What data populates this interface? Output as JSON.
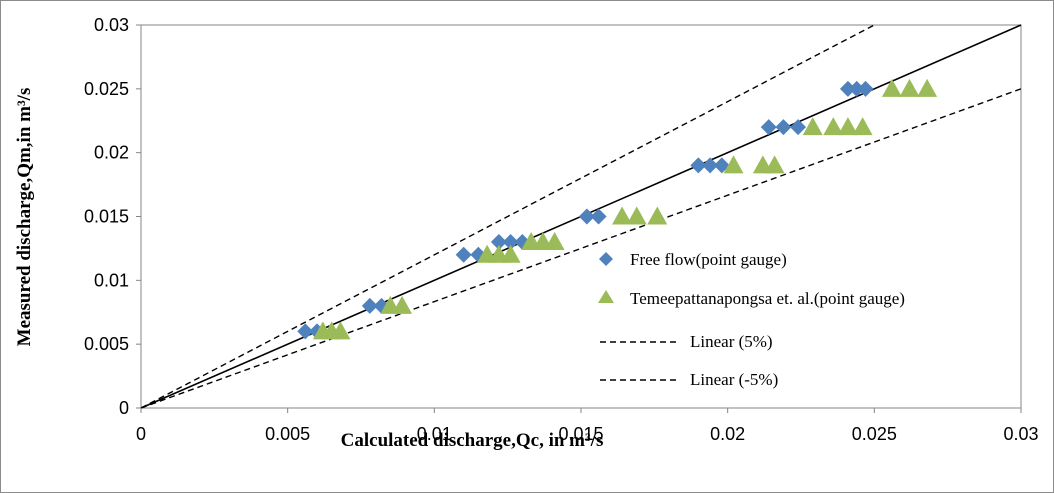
{
  "chart_data": {
    "type": "scatter",
    "xlabel": "Calculated discharge,Qc, in m³/s",
    "ylabel": "Measured discharge,Qm,in m³/s",
    "xlim": [
      0,
      0.03
    ],
    "ylim": [
      0,
      0.03
    ],
    "x_ticks": [
      "0",
      "0.005",
      "0.01",
      "0.015",
      "0.02",
      "0.025",
      "0.03"
    ],
    "y_ticks": [
      "0",
      "0.005",
      "0.01",
      "0.015",
      "0.02",
      "0.025",
      "0.03"
    ],
    "grid": false,
    "legend_position": "right",
    "series": [
      {
        "name": "Free flow(point gauge)",
        "marker": "diamond",
        "color": "#4f81bd",
        "points": [
          [
            0.0056,
            0.006
          ],
          [
            0.006,
            0.006
          ],
          [
            0.0078,
            0.008
          ],
          [
            0.0082,
            0.008
          ],
          [
            0.011,
            0.012
          ],
          [
            0.0115,
            0.012
          ],
          [
            0.0122,
            0.013
          ],
          [
            0.0126,
            0.013
          ],
          [
            0.013,
            0.013
          ],
          [
            0.0152,
            0.015
          ],
          [
            0.0156,
            0.015
          ],
          [
            0.019,
            0.019
          ],
          [
            0.0194,
            0.019
          ],
          [
            0.0198,
            0.019
          ],
          [
            0.0214,
            0.022
          ],
          [
            0.0219,
            0.022
          ],
          [
            0.0224,
            0.022
          ],
          [
            0.0241,
            0.025
          ],
          [
            0.0244,
            0.025
          ],
          [
            0.0247,
            0.025
          ]
        ]
      },
      {
        "name": "Temeepattanapongsa et. al.(point gauge)",
        "marker": "triangle",
        "color": "#9bbb59",
        "points": [
          [
            0.0062,
            0.006
          ],
          [
            0.0065,
            0.006
          ],
          [
            0.0068,
            0.006
          ],
          [
            0.0085,
            0.008
          ],
          [
            0.0089,
            0.008
          ],
          [
            0.0118,
            0.012
          ],
          [
            0.0122,
            0.012
          ],
          [
            0.0126,
            0.012
          ],
          [
            0.0133,
            0.013
          ],
          [
            0.0137,
            0.013
          ],
          [
            0.0141,
            0.013
          ],
          [
            0.0164,
            0.015
          ],
          [
            0.0169,
            0.015
          ],
          [
            0.0176,
            0.015
          ],
          [
            0.0202,
            0.019
          ],
          [
            0.0212,
            0.019
          ],
          [
            0.0216,
            0.019
          ],
          [
            0.0229,
            0.022
          ],
          [
            0.0236,
            0.022
          ],
          [
            0.0241,
            0.022
          ],
          [
            0.0246,
            0.022
          ],
          [
            0.0256,
            0.025
          ],
          [
            0.0262,
            0.025
          ],
          [
            0.0268,
            0.025
          ]
        ]
      },
      {
        "name": "Linear (5%)",
        "style": "dashed",
        "color": "#000000",
        "points": [
          [
            0,
            0
          ],
          [
            0.025,
            0.03
          ]
        ]
      },
      {
        "name": "Linear (-5%)",
        "style": "dashed",
        "color": "#000000",
        "points": [
          [
            0,
            0
          ],
          [
            0.03,
            0.025
          ]
        ]
      },
      {
        "style": "solid",
        "color": "#000000",
        "points": [
          [
            0,
            0
          ],
          [
            0.03,
            0.03
          ]
        ]
      }
    ]
  }
}
